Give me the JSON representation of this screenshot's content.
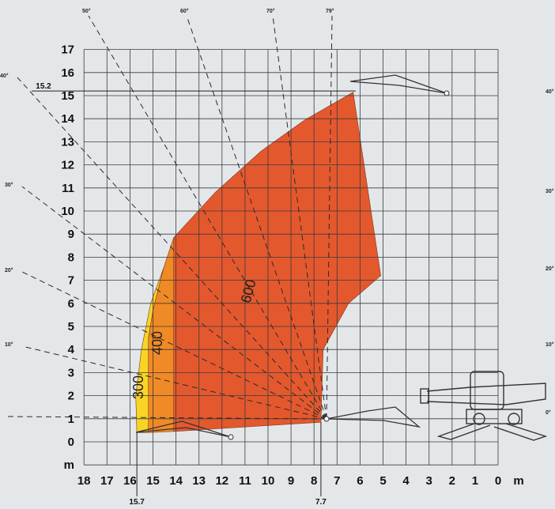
{
  "chart_data": {
    "type": "area",
    "title": "",
    "xlabel": "m",
    "ylabel": "m",
    "xlim": [
      0,
      18
    ],
    "ylim": [
      0,
      17
    ],
    "x_ticks": [
      "18",
      "17",
      "16",
      "15",
      "14",
      "13",
      "12",
      "11",
      "10",
      "9",
      "8",
      "7",
      "6",
      "5",
      "4",
      "3",
      "2",
      "1",
      "0"
    ],
    "y_ticks": [
      "0",
      "1",
      "2",
      "3",
      "4",
      "5",
      "6",
      "7",
      "8",
      "9",
      "10",
      "11",
      "12",
      "13",
      "14",
      "15",
      "16",
      "17"
    ],
    "x_reversed": true,
    "grid": true,
    "zones": [
      {
        "label": "600",
        "color": "#e4582e",
        "points": [
          [
            14.1,
            8.85
          ],
          [
            12.3,
            10.8
          ],
          [
            10.3,
            12.6
          ],
          [
            8.4,
            13.95
          ],
          [
            6.3,
            15.15
          ],
          [
            5.1,
            7.2
          ],
          [
            6.5,
            6.0
          ],
          [
            7.6,
            4.0
          ],
          [
            7.7,
            0.85
          ],
          [
            14.1,
            0.45
          ]
        ]
      },
      {
        "label": "400",
        "color": "#f08a26",
        "points": [
          [
            14.1,
            8.85
          ],
          [
            14.55,
            7.5
          ],
          [
            15.0,
            5.7
          ],
          [
            15.2,
            4.5
          ],
          [
            15.2,
            0.4
          ],
          [
            14.1,
            0.45
          ]
        ]
      },
      {
        "label": "300",
        "color": "#f8d426",
        "points": [
          [
            14.55,
            7.5
          ],
          [
            15.1,
            6.0
          ],
          [
            15.5,
            4.0
          ],
          [
            15.75,
            2.0
          ],
          [
            15.7,
            0.4
          ],
          [
            15.2,
            0.4
          ],
          [
            15.2,
            4.5
          ],
          [
            15.0,
            5.7
          ]
        ]
      }
    ],
    "angle_lines": [
      {
        "label": "0°",
        "deg": 0
      },
      {
        "label": "10°",
        "deg": 10
      },
      {
        "label": "20°",
        "deg": 20
      },
      {
        "label": "30°",
        "deg": 30
      },
      {
        "label": "40°",
        "deg": 40
      },
      {
        "label": "50°",
        "deg": 50
      },
      {
        "label": "60°",
        "deg": 60
      },
      {
        "label": "70°",
        "deg": 70
      },
      {
        "label": "79°",
        "deg": 79
      }
    ],
    "annotations": [
      {
        "text": "15.2",
        "x": 17.3,
        "y": 15.2
      },
      {
        "text": "15.7",
        "x": 15.7,
        "y": -2.6
      },
      {
        "text": "7.7",
        "x": 7.7,
        "y": -2.6
      }
    ],
    "right_angle_labels": [
      "40°",
      "30°",
      "20°",
      "10°",
      "0°"
    ],
    "colors": {
      "background": "#e4e7ea",
      "grid": "#3a3a3a",
      "dashed": "#2a2a2a",
      "machine": "#333333"
    }
  }
}
